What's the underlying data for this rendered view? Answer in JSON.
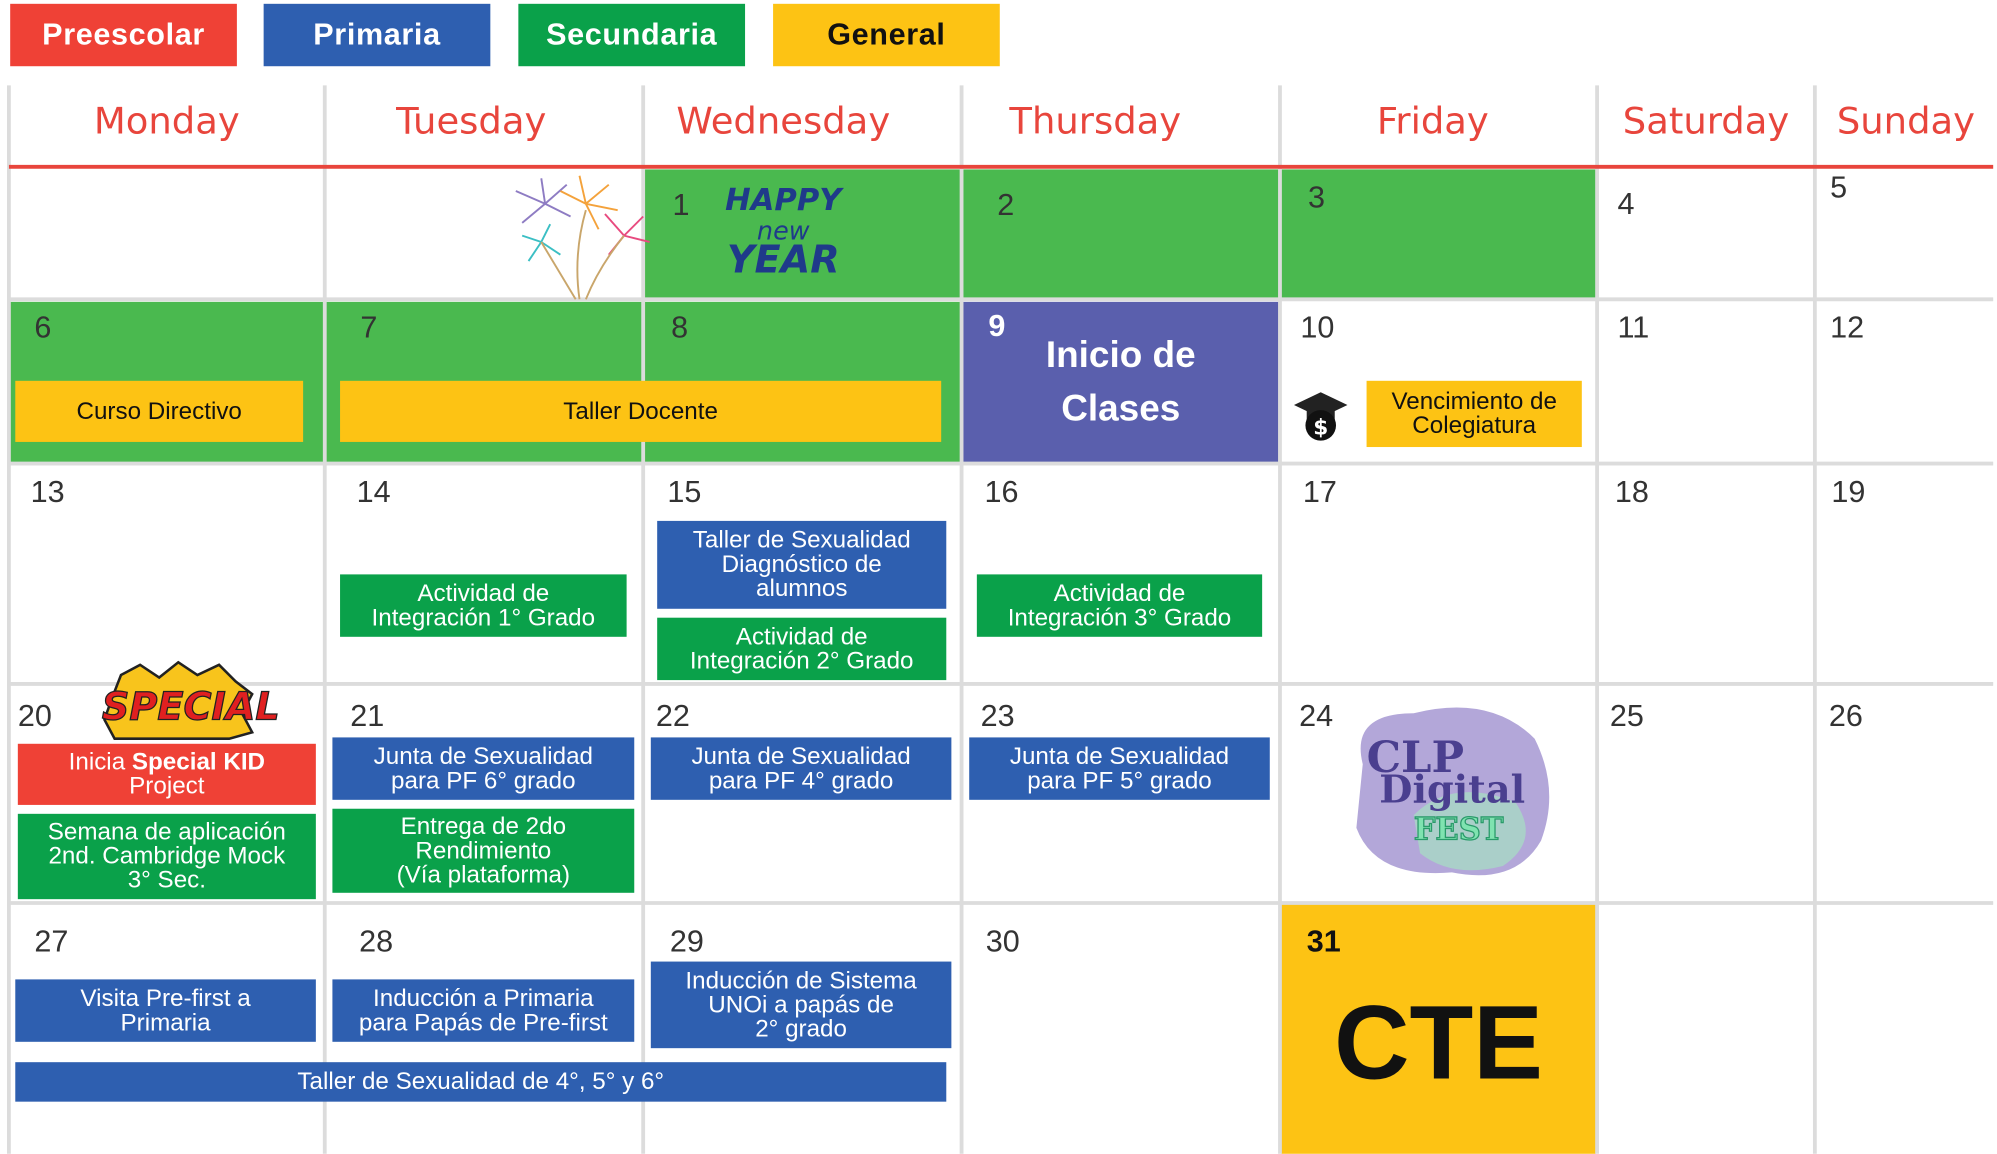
{
  "legend": [
    {
      "label": "Preescolar",
      "color": "#ef4136"
    },
    {
      "label": "Primaria",
      "color": "#2e5fb0"
    },
    {
      "label": "Secundaria",
      "color": "#0aa14a"
    },
    {
      "label": "General",
      "color": "#fdc314"
    }
  ],
  "weekdays": [
    "Monday",
    "Tuesday",
    "Wednesday",
    "Thursday",
    "Friday",
    "Saturday",
    "Sunday"
  ],
  "days": [
    1,
    2,
    3,
    4,
    5,
    6,
    7,
    8,
    9,
    10,
    11,
    12,
    13,
    14,
    15,
    16,
    17,
    18,
    19,
    20,
    21,
    22,
    23,
    24,
    25,
    26,
    27,
    28,
    29,
    30,
    31
  ],
  "events": [
    {
      "lines": [
        "Curso Directivo"
      ]
    },
    {
      "lines": [
        "Taller Docente"
      ]
    },
    {
      "lines": [
        "Inicio de",
        "Clases"
      ]
    },
    {
      "lines": [
        "Vencimiento de",
        "Colegiatura"
      ]
    },
    {
      "lines": [
        "Actividad de",
        "Integración 1° Grado"
      ]
    },
    {
      "lines": [
        "Taller de Sexualidad",
        "Diagnóstico de",
        "alumnos"
      ]
    },
    {
      "lines": [
        "Actividad de",
        "Integración 2° Grado"
      ]
    },
    {
      "lines": [
        "Actividad de",
        "Integración 3° Grado"
      ]
    },
    {
      "lines": [
        [
          "Inicia",
          "Special KID"
        ],
        "Project"
      ]
    },
    {
      "lines": [
        "Semana de aplicación",
        "2nd. Cambridge Mock",
        "3° Sec."
      ]
    },
    {
      "lines": [
        "Junta de Sexualidad",
        "para PF 6° grado"
      ]
    },
    {
      "lines": [
        "Entrega de 2do",
        "Rendimiento",
        "(Vía plataforma)"
      ]
    },
    {
      "lines": [
        "Junta de Sexualidad",
        "para PF 4° grado"
      ]
    },
    {
      "lines": [
        "Junta de Sexualidad",
        "para PF 5° grado"
      ]
    },
    {
      "lines": [
        "Visita Pre-first a",
        "Primaria"
      ]
    },
    {
      "lines": [
        "Inducción a Primaria",
        "para Papás de Pre-first"
      ]
    },
    {
      "lines": [
        "Inducción de Sistema",
        "UNOi a papás de",
        "2° grado"
      ]
    },
    {
      "lines": [
        "Taller de Sexualidad de 4°, 5° y 6°"
      ]
    },
    {
      "lines": [
        "CTE"
      ]
    }
  ],
  "stickers": {
    "new_year": [
      "HAPPY",
      "new",
      "YEAR"
    ],
    "special": [
      "SPECIAL"
    ],
    "digital_fest": [
      "CLP",
      "Digital",
      "FEST"
    ]
  }
}
